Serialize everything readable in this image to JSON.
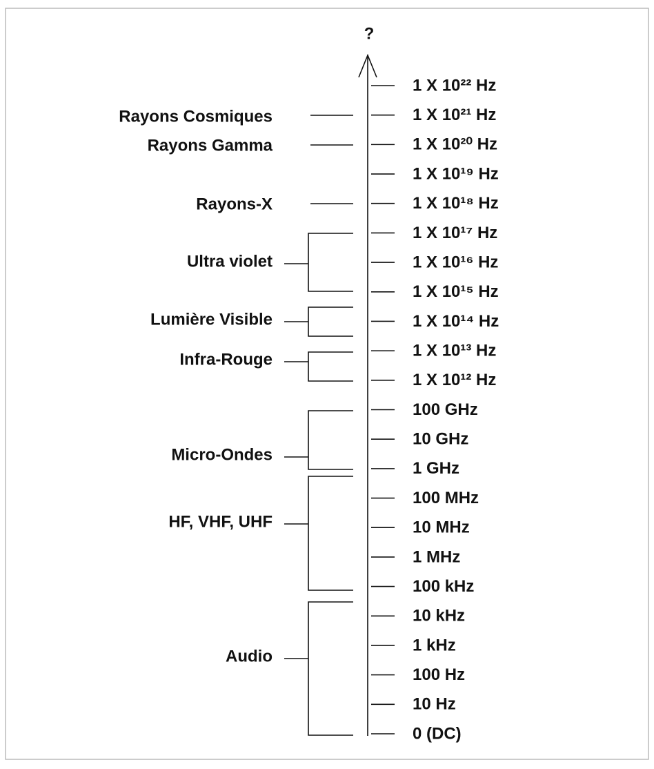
{
  "top_label": "?",
  "frequencies": [
    "1 X 10²² Hz",
    "1 X 10²¹ Hz",
    "1 X 10²⁰ Hz",
    "1 X 10¹⁹ Hz",
    "1 X 10¹⁸ Hz",
    "1 X 10¹⁷ Hz",
    "1 X 10¹⁶ Hz",
    "1 X 10¹⁵ Hz",
    "1 X 10¹⁴ Hz",
    "1 X 10¹³ Hz",
    "1 X 10¹² Hz",
    "100 GHz",
    "10 GHz",
    "1 GHz",
    "100 MHz",
    "10 MHz",
    "1 MHz",
    "100 kHz",
    "10 kHz",
    "1 kHz",
    "100 Hz",
    "10 Hz",
    "0 (DC)"
  ],
  "bands": [
    "Rayons Cosmiques",
    "Rayons Gamma",
    "Rayons-X",
    "Ultra violet",
    "Lumière Visible",
    "Infra-Rouge",
    "Micro-Ondes",
    "HF, VHF, UHF",
    "Audio"
  ]
}
